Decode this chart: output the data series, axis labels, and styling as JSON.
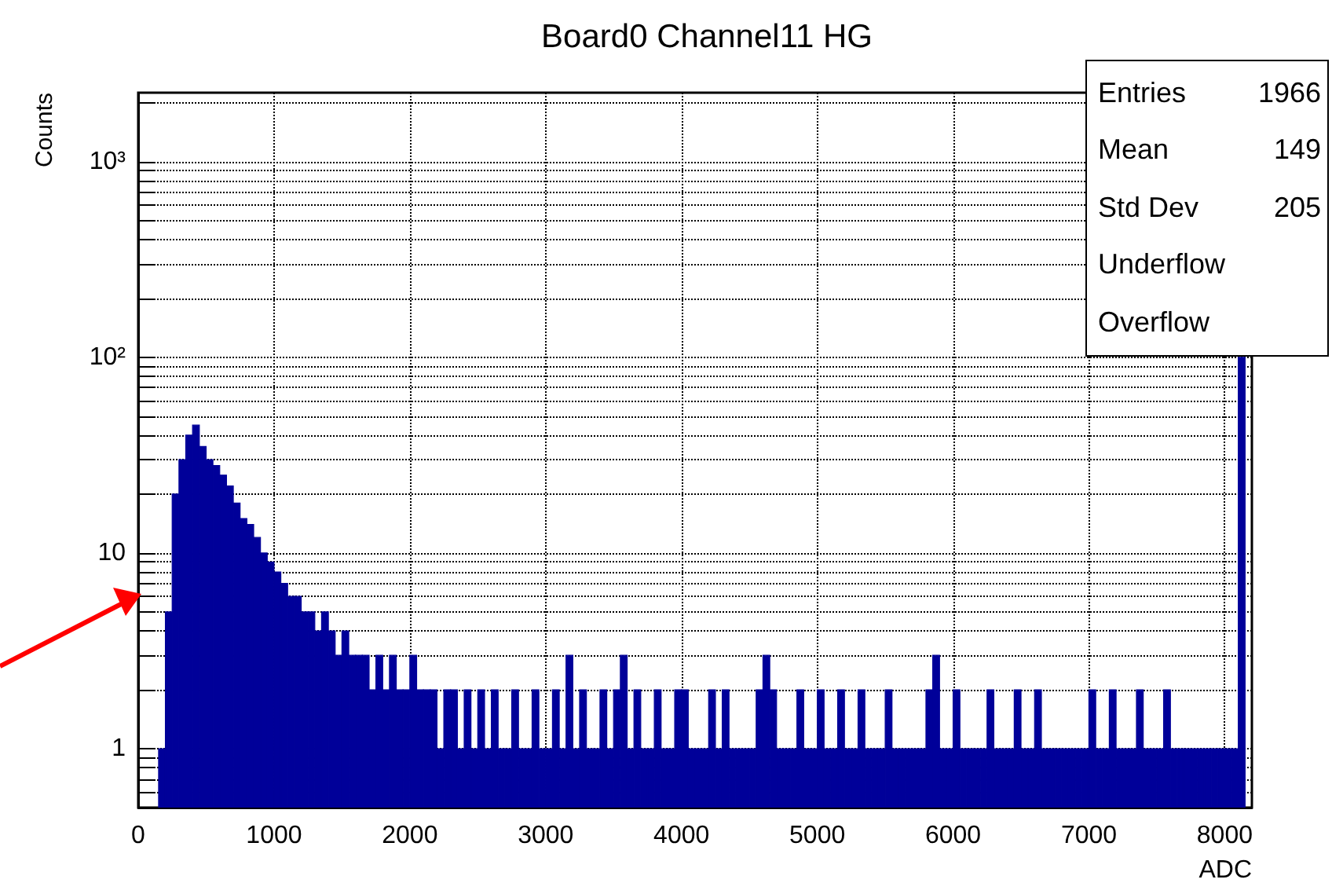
{
  "chart_data": {
    "type": "histogram",
    "title": "Board0 Channel11 HG",
    "xlabel": "ADC",
    "ylabel": "Counts",
    "annotations": [
      "Entries\t1966",
      "Mean\t149",
      "Std Dev\t205",
      "Underflow",
      "Overflow"
    ],
    "bins": [
      0,
      50,
      100,
      150,
      200,
      250,
      300,
      350,
      400,
      450,
      500,
      550,
      600,
      650,
      700,
      750,
      800,
      850,
      900,
      950,
      1000,
      1050,
      1100,
      1150,
      1200,
      1250,
      1300,
      1350,
      1400,
      1450,
      1500,
      1550,
      1600,
      1650,
      1700,
      1750,
      1800,
      1850,
      1900,
      1950,
      2000,
      2050,
      2100,
      2150,
      2200,
      2250,
      2300,
      2350,
      2400,
      2450,
      2500,
      2550,
      2600,
      2650,
      2700,
      2750,
      2800,
      2850,
      2900,
      2950,
      3000,
      3050,
      3100,
      3150,
      3200,
      3250,
      3300,
      3350,
      3400,
      3450,
      3500,
      3550,
      3600,
      3650,
      3700,
      3750,
      3800,
      3850,
      3900,
      3950,
      4000,
      4050,
      4100,
      4150,
      4200,
      4250,
      4300,
      4350,
      4400,
      4450,
      4500,
      4550,
      4600,
      4650,
      4700,
      4750,
      4800,
      4850,
      4900,
      4950,
      5000,
      5050,
      5100,
      5150,
      5200,
      5250,
      5300,
      5350,
      5400,
      5450,
      5500,
      5550,
      5600,
      5650,
      5700,
      5750,
      5800,
      5850,
      5900,
      5950,
      6000,
      6050,
      6100,
      6150,
      6200,
      6250,
      6300,
      6350,
      6400,
      6450,
      6500,
      6550,
      6600,
      6650,
      6700,
      6750,
      6800,
      6850,
      6900,
      6950,
      7000,
      7050,
      7100,
      7150,
      7200,
      7250,
      7300,
      7350,
      7400,
      7450,
      7500,
      7550,
      7600,
      7650,
      7700,
      7750,
      7800,
      7850,
      7900,
      7950,
      8000,
      8050,
      8100,
      8150,
      8200
    ],
    "values": [
      null,
      null,
      null,
      1,
      5,
      20,
      30,
      40,
      45,
      35,
      30,
      28,
      25,
      22,
      18,
      15,
      14,
      12,
      10,
      9,
      8,
      7,
      6,
      6,
      5,
      5,
      4,
      5,
      4,
      3,
      4,
      3,
      3,
      3,
      2,
      3,
      2,
      3,
      2,
      2,
      3,
      2,
      2,
      2,
      1,
      2,
      2,
      1,
      2,
      1,
      2,
      1,
      2,
      1,
      1,
      2,
      1,
      1,
      2,
      1,
      1,
      2,
      1,
      3,
      1,
      2,
      1,
      1,
      2,
      1,
      2,
      3,
      1,
      2,
      1,
      1,
      2,
      1,
      1,
      2,
      2,
      1,
      1,
      1,
      2,
      1,
      2,
      1,
      1,
      1,
      1,
      2,
      3,
      2,
      1,
      1,
      1,
      2,
      1,
      1,
      2,
      1,
      1,
      2,
      1,
      1,
      2,
      1,
      1,
      1,
      2,
      1,
      1,
      1,
      1,
      1,
      2,
      3,
      1,
      1,
      2,
      1,
      1,
      1,
      1,
      2,
      1,
      1,
      1,
      2,
      1,
      1,
      2,
      1,
      1,
      1,
      1,
      1,
      1,
      1,
      2,
      1,
      1,
      2,
      1,
      1,
      1,
      2,
      1,
      1,
      1,
      2,
      1,
      1,
      1,
      1,
      1,
      1,
      1,
      1,
      1,
      1,
      100,
      null
    ],
    "color": "#000099",
    "log": "y",
    "grid": true,
    "xlim": [
      0,
      8200
    ],
    "xticks": [
      0,
      1000,
      2000,
      3000,
      4000,
      5000,
      6000,
      7000,
      8000
    ],
    "ylim": [
      0.5,
      2250
    ],
    "yticks": [
      {
        "value": 0.6,
        "label": null
      },
      {
        "value": 0.7,
        "label": null
      },
      {
        "value": 0.8,
        "label": null
      },
      {
        "value": 0.9,
        "label": null
      },
      1,
      {
        "value": 2,
        "label": null
      },
      {
        "value": 3,
        "label": null
      },
      {
        "value": 4,
        "label": null
      },
      {
        "value": 5,
        "label": null
      },
      {
        "value": 6,
        "label": null
      },
      {
        "value": 7,
        "label": null
      },
      {
        "value": 8,
        "label": null
      },
      {
        "value": 9,
        "label": null
      },
      10,
      {
        "value": 20,
        "label": null
      },
      {
        "value": 30,
        "label": null
      },
      {
        "value": 40,
        "label": null
      },
      {
        "value": 50,
        "label": null
      },
      {
        "value": 60,
        "label": null
      },
      {
        "value": 70,
        "label": null
      },
      {
        "value": 80,
        "label": null
      },
      {
        "value": 90,
        "label": null
      },
      {
        "value": 100,
        "label": "10²"
      },
      {
        "value": 200,
        "label": null
      },
      {
        "value": 300,
        "label": null
      },
      {
        "value": 400,
        "label": null
      },
      {
        "value": 500,
        "label": null
      },
      {
        "value": 600,
        "label": null
      },
      {
        "value": 700,
        "label": null
      },
      {
        "value": 800,
        "label": null
      },
      {
        "value": 900,
        "label": null
      },
      {
        "value": 1000,
        "label": "10³"
      },
      {
        "value": 2000,
        "label": null
      }
    ]
  }
}
